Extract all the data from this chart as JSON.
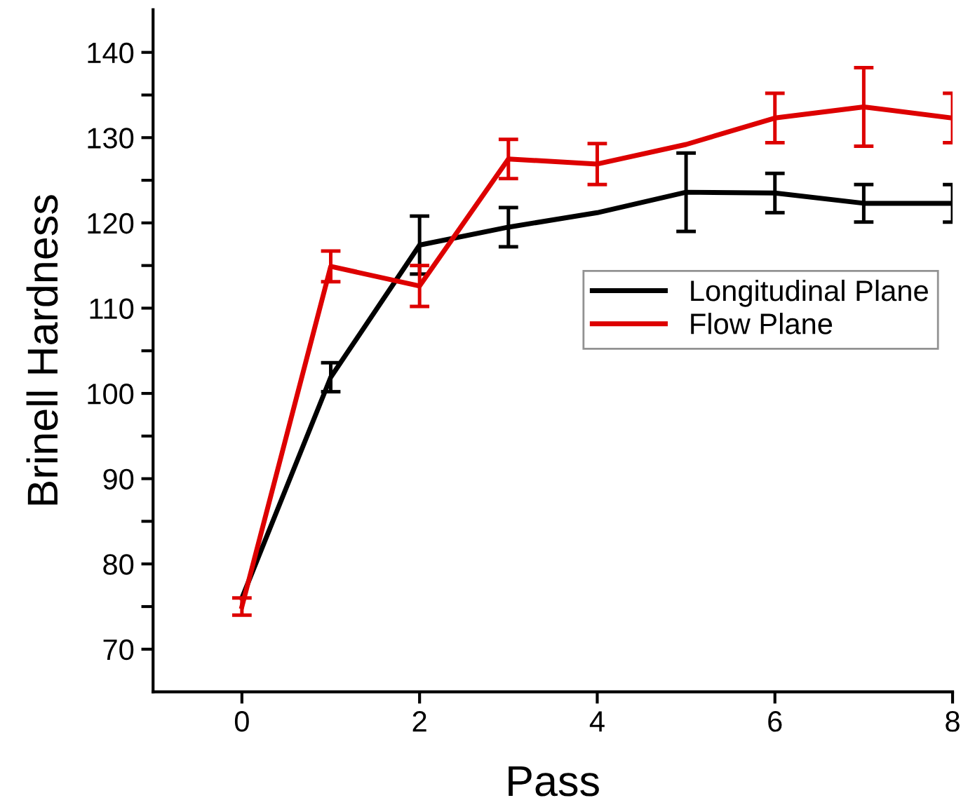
{
  "chart_data": {
    "type": "line",
    "xlabel": "Pass",
    "ylabel": "Brinell Hardness",
    "xlim": [
      -1,
      8
    ],
    "xticks": [
      0,
      2,
      4,
      6,
      8
    ],
    "ylim": [
      65,
      145
    ],
    "yticks": [
      70,
      {
        "value": 75,
        "label": null
      },
      80,
      {
        "value": 85,
        "label": null
      },
      90,
      {
        "value": 95,
        "label": null
      },
      100,
      {
        "value": 105,
        "label": null
      },
      110,
      {
        "value": 115,
        "label": null
      },
      120,
      {
        "value": 125,
        "label": null
      },
      130,
      {
        "value": 135,
        "label": null
      },
      140
    ],
    "x": [
      0,
      1,
      2,
      3,
      4,
      5,
      6,
      7,
      8
    ],
    "series": [
      {
        "name": "Longitudinal Plane",
        "color": "#000000",
        "values": [
          76,
          101.9,
          117.4,
          119.5,
          121.2,
          123.6,
          123.5,
          122.3,
          122.3
        ],
        "errors": [
          null,
          1.7,
          3.4,
          2.3,
          null,
          4.6,
          2.3,
          2.2,
          2.2
        ]
      },
      {
        "name": "Flow Plane",
        "color": "#dd0000",
        "values": [
          75,
          114.9,
          112.6,
          127.5,
          126.9,
          129.2,
          132.3,
          133.6,
          132.3
        ],
        "errors": [
          1,
          1.8,
          2.4,
          2.3,
          2.4,
          null,
          2.9,
          4.6,
          2.9
        ]
      }
    ],
    "legend": "center right",
    "grid": false,
    "marker": "none",
    "line_style": "solid"
  }
}
